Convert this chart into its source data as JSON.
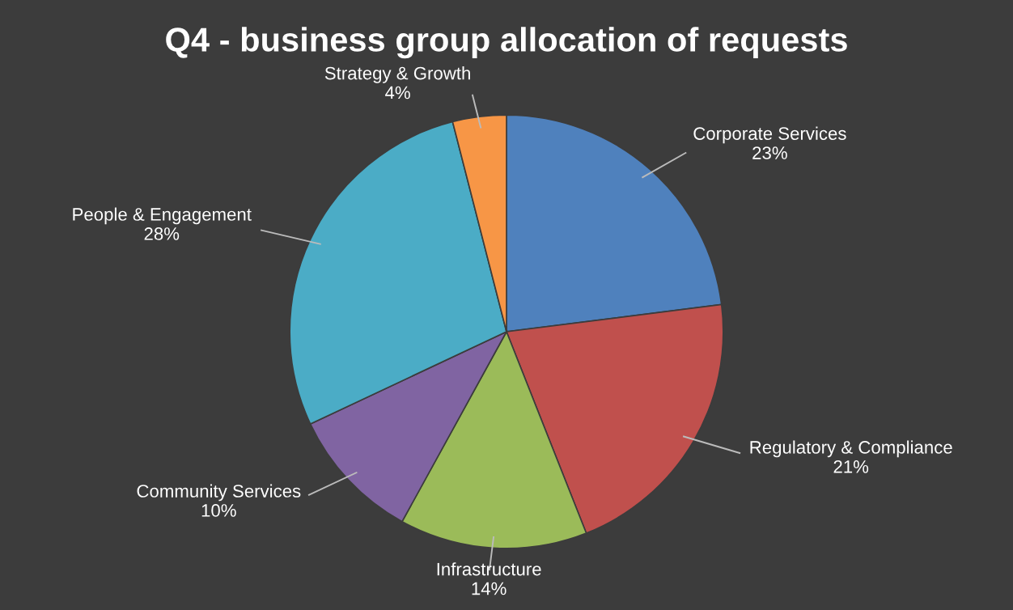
{
  "chart_data": {
    "type": "pie",
    "title": "Q4 - business group allocation of requests",
    "categories": [
      "Corporate Services",
      "Regulatory & Compliance",
      "Infrastructure",
      "Community Services",
      "People & Engagement",
      "Strategy & Growth"
    ],
    "values": [
      23,
      21,
      14,
      10,
      28,
      4
    ],
    "value_labels": [
      "23%",
      "21%",
      "14%",
      "10%",
      "28%",
      "4%"
    ],
    "colors": [
      "#4f81bd",
      "#c0504d",
      "#9bbb59",
      "#8064a2",
      "#4bacc6",
      "#f79646"
    ],
    "legend": false
  }
}
